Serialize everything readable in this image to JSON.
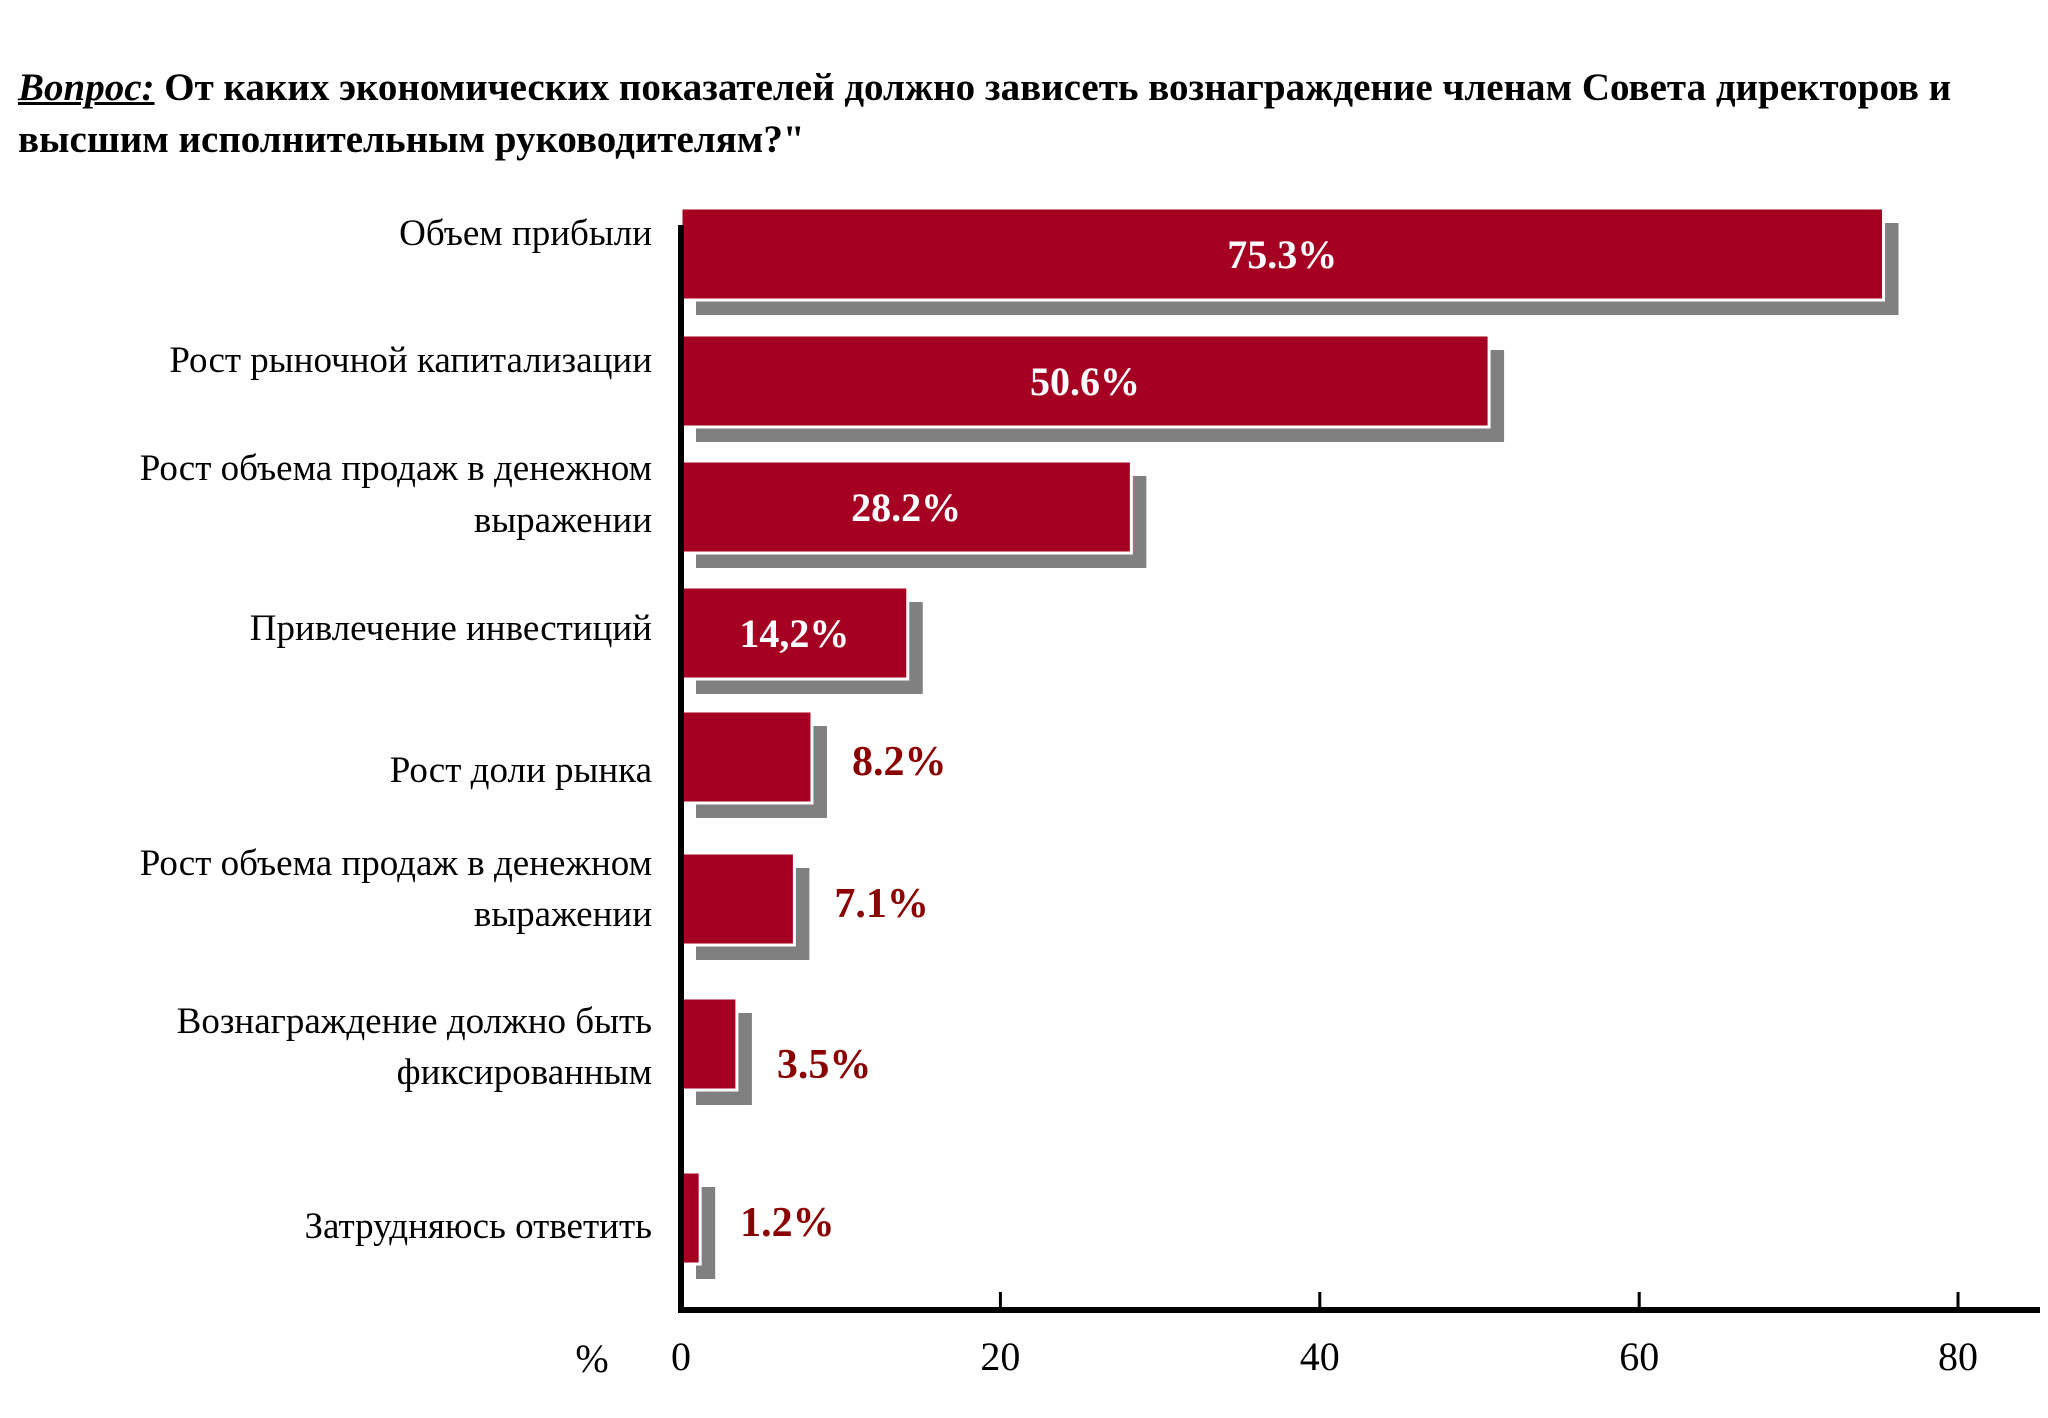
{
  "question": {
    "prefix": "Вопрос:",
    "text": "От каких экономических показателей должно зависеть вознаграждение членам Совета директоров и высшим исполнительным руководителям?\""
  },
  "colors": {
    "bar": "#a50021",
    "shadow": "#808080",
    "outside_label": "#8b0000"
  },
  "chart_data": {
    "type": "bar",
    "orientation": "horizontal",
    "xlabel": "%",
    "xlim": [
      0,
      80
    ],
    "xticks": [
      "0",
      "20",
      "40",
      "60",
      "80"
    ],
    "categories": [
      [
        "Объем прибыли"
      ],
      [
        "Рост рыночной капитализации"
      ],
      [
        "Рост объема продаж в денежном",
        "выражении"
      ],
      [
        "Привлечение инвестиций"
      ],
      [
        "Рост доли рынка"
      ],
      [
        "Рост объема продаж в денежном",
        "выражении"
      ],
      [
        "Вознаграждение должно быть",
        "фиксированным"
      ],
      [
        "Затрудняюсь ответить"
      ]
    ],
    "values": [
      75.3,
      50.6,
      28.2,
      14.2,
      8.2,
      7.1,
      3.5,
      1.2
    ],
    "data_labels": [
      "75.3%",
      "50.6%",
      "28.2%",
      "14,2%",
      "8.2%",
      "7.1%",
      "3.5%",
      "1.2%"
    ]
  }
}
